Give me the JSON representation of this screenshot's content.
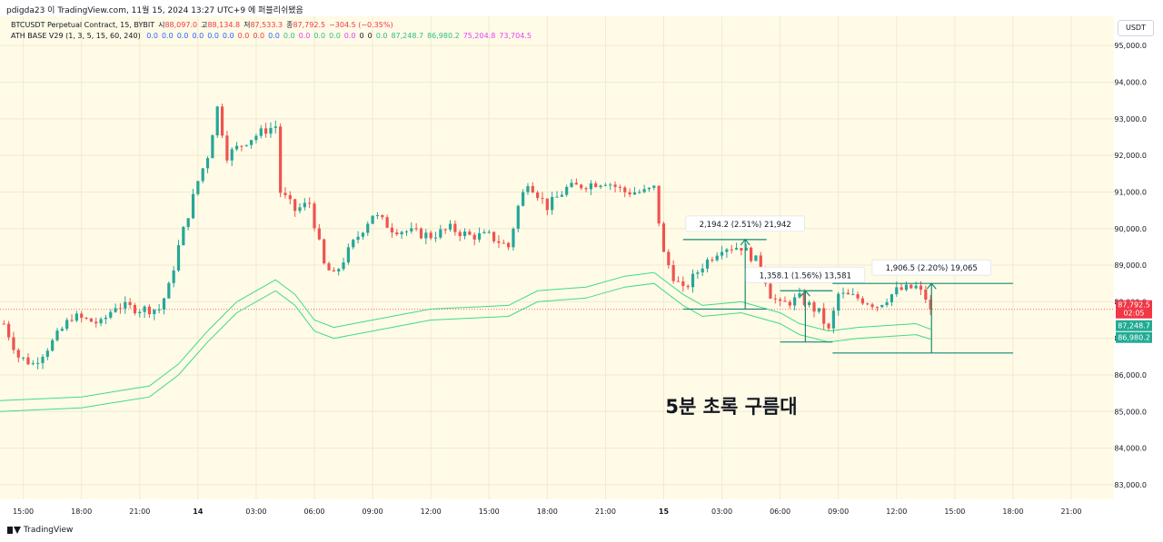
{
  "header": {
    "attribution": "pdigda23 이 TradingView.com, 11월 15, 2024 13:27 UTC+9 에 퍼블리쉬됐음"
  },
  "legend": {
    "symbol_line": {
      "title": "BTCUSDT Perpetual Contract, 15, BYBIT",
      "open_label": "시",
      "open_value": "88,097.0",
      "high_label": "고",
      "high_value": "88,134.8",
      "low_label": "저",
      "low_value": "87,533.3",
      "close_label": "종",
      "close_value": "87,792.5",
      "change": "−304.5 (−0.35%)"
    },
    "indicator_line": {
      "title": "ATH BASE V29 (1, 3, 5, 15, 60, 240)",
      "values": [
        {
          "text": "0.0",
          "color": "#2962ff"
        },
        {
          "text": "0.0",
          "color": "#2962ff"
        },
        {
          "text": "0.0",
          "color": "#2962ff"
        },
        {
          "text": "0.0",
          "color": "#2962ff"
        },
        {
          "text": "0.0",
          "color": "#2962ff"
        },
        {
          "text": "0.0",
          "color": "#2962ff"
        },
        {
          "text": "0.0",
          "color": "#f23645"
        },
        {
          "text": "0.0",
          "color": "#f23645"
        },
        {
          "text": "0.0",
          "color": "#2962ff"
        },
        {
          "text": "0.0",
          "color": "#2ebd85"
        },
        {
          "text": "0.0",
          "color": "#e040fb"
        },
        {
          "text": "0.0",
          "color": "#2ebd85"
        },
        {
          "text": "0.0",
          "color": "#2ebd85"
        },
        {
          "text": "0.0",
          "color": "#e040fb"
        },
        {
          "text": "0",
          "color": "#131722"
        },
        {
          "text": "0",
          "color": "#131722"
        },
        {
          "text": "0.0",
          "color": "#2ebd85"
        },
        {
          "text": "87,248.7",
          "color": "#2ebd85"
        },
        {
          "text": "86,980.2",
          "color": "#2ebd85"
        },
        {
          "text": "75,204.8",
          "color": "#e040fb"
        },
        {
          "text": "73,704.5",
          "color": "#e040fb"
        }
      ]
    }
  },
  "currency_button": "USDT",
  "footer": {
    "brand": "TradingView"
  },
  "colors": {
    "up": "#26a69a",
    "down": "#ef5350",
    "band": "#3ddc84",
    "measure": "#138a76",
    "last_price": "#f23645",
    "band_label": "#22ab94"
  },
  "chart_data": {
    "type": "candlestick",
    "symbol": "BTCUSDT Perpetual Contract",
    "timeframe": "15",
    "exchange": "BYBIT",
    "y_axis": {
      "range": [
        82600,
        95800
      ],
      "ticks": [
        {
          "value": 95000,
          "label": "95,000.0"
        },
        {
          "value": 94000,
          "label": "94,000.0"
        },
        {
          "value": 93000,
          "label": "93,000.0"
        },
        {
          "value": 92000,
          "label": "92,000.0"
        },
        {
          "value": 91000,
          "label": "91,000.0"
        },
        {
          "value": 90000,
          "label": "90,000.0"
        },
        {
          "value": 89000,
          "label": "89,000.0"
        },
        {
          "value": 88000,
          "label": "88,000.0"
        },
        {
          "value": 87000,
          "label": "87,000.0"
        },
        {
          "value": 86000,
          "label": "86,000.0"
        },
        {
          "value": 85000,
          "label": "85,000.0"
        },
        {
          "value": 84000,
          "label": "84,000.0"
        },
        {
          "value": 83000,
          "label": "83,000.0"
        }
      ]
    },
    "x_axis": {
      "range_hours": [
        -10.2,
        47.2
      ],
      "ticks": [
        {
          "hour": -9,
          "label": "15:00"
        },
        {
          "hour": -6,
          "label": "18:00"
        },
        {
          "hour": -3,
          "label": "21:00"
        },
        {
          "hour": 0,
          "label": "14",
          "bold": true
        },
        {
          "hour": 3,
          "label": "03:00"
        },
        {
          "hour": 6,
          "label": "06:00"
        },
        {
          "hour": 9,
          "label": "09:00"
        },
        {
          "hour": 12,
          "label": "12:00"
        },
        {
          "hour": 15,
          "label": "15:00"
        },
        {
          "hour": 18,
          "label": "18:00"
        },
        {
          "hour": 21,
          "label": "21:00"
        },
        {
          "hour": 24,
          "label": "15",
          "bold": true
        },
        {
          "hour": 27,
          "label": "03:00"
        },
        {
          "hour": 30,
          "label": "06:00"
        },
        {
          "hour": 33,
          "label": "09:00"
        },
        {
          "hour": 36,
          "label": "12:00"
        },
        {
          "hour": 39,
          "label": "15:00"
        },
        {
          "hour": 42,
          "label": "18:00"
        },
        {
          "hour": 45,
          "label": "21:00"
        }
      ]
    },
    "candle_anchors": [
      {
        "h": -10.0,
        "p": 87400
      },
      {
        "h": -9.25,
        "p": 86500
      },
      {
        "h": -8.5,
        "p": 86300
      },
      {
        "h": -7.5,
        "p": 86900
      },
      {
        "h": -6.5,
        "p": 87600
      },
      {
        "h": -5.0,
        "p": 87400
      },
      {
        "h": -4.25,
        "p": 87900
      },
      {
        "h": -3.0,
        "p": 87800
      },
      {
        "h": -2.0,
        "p": 87800
      },
      {
        "h": -1.5,
        "p": 88400
      },
      {
        "h": -1.0,
        "p": 89500
      },
      {
        "h": 0.0,
        "p": 91300
      },
      {
        "h": 0.5,
        "p": 92000
      },
      {
        "h": 1.0,
        "p": 93300
      },
      {
        "h": 1.5,
        "p": 92000
      },
      {
        "h": 2.5,
        "p": 92400
      },
      {
        "h": 3.5,
        "p": 92700
      },
      {
        "h": 4.0,
        "p": 92800
      },
      {
        "h": 4.25,
        "p": 91000
      },
      {
        "h": 5.0,
        "p": 90500
      },
      {
        "h": 5.75,
        "p": 90700
      },
      {
        "h": 6.5,
        "p": 89000
      },
      {
        "h": 7.0,
        "p": 88700
      },
      {
        "h": 8.0,
        "p": 89600
      },
      {
        "h": 9.0,
        "p": 90400
      },
      {
        "h": 10.0,
        "p": 90000
      },
      {
        "h": 11.0,
        "p": 89900
      },
      {
        "h": 12.0,
        "p": 89800
      },
      {
        "h": 13.0,
        "p": 90000
      },
      {
        "h": 14.0,
        "p": 89800
      },
      {
        "h": 15.0,
        "p": 89800
      },
      {
        "h": 16.0,
        "p": 89500
      },
      {
        "h": 16.5,
        "p": 90600
      },
      {
        "h": 17.0,
        "p": 91300
      },
      {
        "h": 18.0,
        "p": 90600
      },
      {
        "h": 19.0,
        "p": 91100
      },
      {
        "h": 20.0,
        "p": 91200
      },
      {
        "h": 21.0,
        "p": 91300
      },
      {
        "h": 22.0,
        "p": 91000
      },
      {
        "h": 23.0,
        "p": 91000
      },
      {
        "h": 23.5,
        "p": 91100
      },
      {
        "h": 24.0,
        "p": 89300
      },
      {
        "h": 24.5,
        "p": 88700
      },
      {
        "h": 25.0,
        "p": 88300
      },
      {
        "h": 26.0,
        "p": 89000
      },
      {
        "h": 27.0,
        "p": 89500
      },
      {
        "h": 28.0,
        "p": 89500
      },
      {
        "h": 29.0,
        "p": 89000
      },
      {
        "h": 29.5,
        "p": 88200
      },
      {
        "h": 30.0,
        "p": 87900
      },
      {
        "h": 31.0,
        "p": 88100
      },
      {
        "h": 32.0,
        "p": 87700
      },
      {
        "h": 32.5,
        "p": 87200
      },
      {
        "h": 33.0,
        "p": 88200
      },
      {
        "h": 34.0,
        "p": 88100
      },
      {
        "h": 35.0,
        "p": 87900
      },
      {
        "h": 36.0,
        "p": 88300
      },
      {
        "h": 37.0,
        "p": 88400
      },
      {
        "h": 37.5,
        "p": 88100
      },
      {
        "h": 37.75,
        "p": 87790
      }
    ],
    "bands": [
      {
        "name": "band-upper",
        "label": "87,248.7",
        "points": [
          {
            "h": -10.2,
            "p": 85300
          },
          {
            "h": -6,
            "p": 85400
          },
          {
            "h": -2.5,
            "p": 85700
          },
          {
            "h": -1,
            "p": 86300
          },
          {
            "h": 0.5,
            "p": 87200
          },
          {
            "h": 2,
            "p": 88000
          },
          {
            "h": 4,
            "p": 88600
          },
          {
            "h": 5,
            "p": 88200
          },
          {
            "h": 6,
            "p": 87500
          },
          {
            "h": 7,
            "p": 87300
          },
          {
            "h": 9,
            "p": 87500
          },
          {
            "h": 12,
            "p": 87800
          },
          {
            "h": 16,
            "p": 87900
          },
          {
            "h": 17.5,
            "p": 88300
          },
          {
            "h": 20,
            "p": 88400
          },
          {
            "h": 22,
            "p": 88700
          },
          {
            "h": 23.5,
            "p": 88800
          },
          {
            "h": 25,
            "p": 88200
          },
          {
            "h": 26,
            "p": 87900
          },
          {
            "h": 28,
            "p": 88000
          },
          {
            "h": 30,
            "p": 87700
          },
          {
            "h": 31,
            "p": 87400
          },
          {
            "h": 32.5,
            "p": 87200
          },
          {
            "h": 34,
            "p": 87300
          },
          {
            "h": 37,
            "p": 87400
          },
          {
            "h": 37.75,
            "p": 87249
          }
        ]
      },
      {
        "name": "band-lower",
        "label": "86,980.2",
        "points": [
          {
            "h": -10.2,
            "p": 85000
          },
          {
            "h": -6,
            "p": 85100
          },
          {
            "h": -2.5,
            "p": 85400
          },
          {
            "h": -1,
            "p": 86000
          },
          {
            "h": 0.5,
            "p": 86900
          },
          {
            "h": 2,
            "p": 87700
          },
          {
            "h": 4,
            "p": 88300
          },
          {
            "h": 5,
            "p": 87900
          },
          {
            "h": 6,
            "p": 87200
          },
          {
            "h": 7,
            "p": 87000
          },
          {
            "h": 9,
            "p": 87200
          },
          {
            "h": 12,
            "p": 87500
          },
          {
            "h": 16,
            "p": 87600
          },
          {
            "h": 17.5,
            "p": 88000
          },
          {
            "h": 20,
            "p": 88100
          },
          {
            "h": 22,
            "p": 88400
          },
          {
            "h": 23.5,
            "p": 88500
          },
          {
            "h": 25,
            "p": 87900
          },
          {
            "h": 26,
            "p": 87600
          },
          {
            "h": 28,
            "p": 87700
          },
          {
            "h": 30,
            "p": 87400
          },
          {
            "h": 31,
            "p": 87100
          },
          {
            "h": 32.5,
            "p": 86900
          },
          {
            "h": 34,
            "p": 87000
          },
          {
            "h": 37,
            "p": 87100
          },
          {
            "h": 37.75,
            "p": 86980
          }
        ]
      }
    ],
    "last_price": {
      "value": 87792.5,
      "label": "87,792.5",
      "countdown": "02:05"
    },
    "measurements": [
      {
        "label": "2,194.2 (2.51%) 21,942",
        "h_start": 25.0,
        "h_end": 29.3,
        "p_low": 87800,
        "p_high": 89700,
        "arrow_h": 28.2
      },
      {
        "label": "1,358.1 (1.56%) 13,581",
        "h_start": 30.0,
        "h_end": 32.7,
        "p_low": 86900,
        "p_high": 88300,
        "arrow_h": 31.3
      },
      {
        "label": "1,906.5 (2.20%) 19,065",
        "h_start": 32.7,
        "h_end": 42.0,
        "p_low": 86600,
        "p_high": 88500,
        "arrow_h": 37.8
      }
    ],
    "annotation": "5분 초록 구름대"
  }
}
